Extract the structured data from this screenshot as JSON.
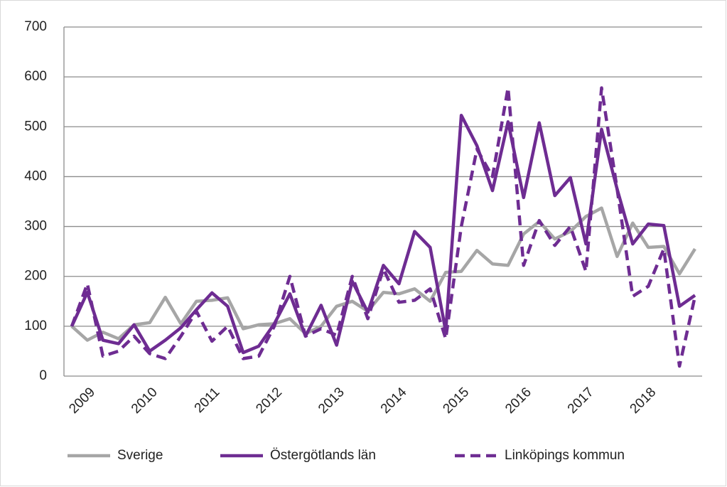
{
  "chart_data": {
    "type": "line",
    "categories": [
      null,
      "2009",
      null,
      null,
      null,
      "2010",
      null,
      null,
      null,
      "2011",
      null,
      null,
      null,
      "2012",
      null,
      null,
      null,
      "2013",
      null,
      null,
      null,
      "2014",
      null,
      null,
      null,
      "2015",
      null,
      null,
      null,
      "2016",
      null,
      null,
      null,
      "2017",
      null,
      null,
      null,
      "2018",
      null,
      null,
      null
    ],
    "series": [
      {
        "name": "Sverige",
        "color": "#a6a6a6",
        "dashed": false,
        "values": [
          100,
          72,
          88,
          75,
          103,
          107,
          158,
          105,
          150,
          152,
          157,
          95,
          103,
          105,
          115,
          85,
          100,
          140,
          150,
          130,
          168,
          165,
          175,
          150,
          208,
          210,
          252,
          225,
          222,
          285,
          310,
          275,
          290,
          320,
          337,
          240,
          307,
          258,
          260,
          205,
          255
        ]
      },
      {
        "name": "Östergötlands län",
        "color": "#6e2c92",
        "dashed": false,
        "values": [
          100,
          168,
          72,
          65,
          103,
          50,
          72,
          97,
          133,
          167,
          140,
          47,
          60,
          105,
          165,
          80,
          142,
          62,
          190,
          128,
          222,
          185,
          290,
          258,
          90,
          523,
          462,
          372,
          510,
          358,
          508,
          362,
          398,
          265,
          495,
          375,
          265,
          305,
          302,
          140,
          162
        ]
      },
      {
        "name": "Linköpings kommun",
        "color": "#6e2c92",
        "dashed": true,
        "values": [
          100,
          185,
          40,
          50,
          80,
          45,
          35,
          80,
          130,
          70,
          100,
          35,
          40,
          100,
          200,
          80,
          95,
          82,
          200,
          115,
          215,
          148,
          152,
          175,
          75,
          300,
          455,
          400,
          578,
          222,
          312,
          262,
          300,
          210,
          578,
          375,
          160,
          180,
          255,
          20,
          160
        ]
      }
    ],
    "ylim": [
      0,
      700
    ],
    "yticks": [
      0,
      100,
      200,
      300,
      400,
      500,
      600,
      700
    ],
    "grid": true,
    "legend": "bottom"
  }
}
